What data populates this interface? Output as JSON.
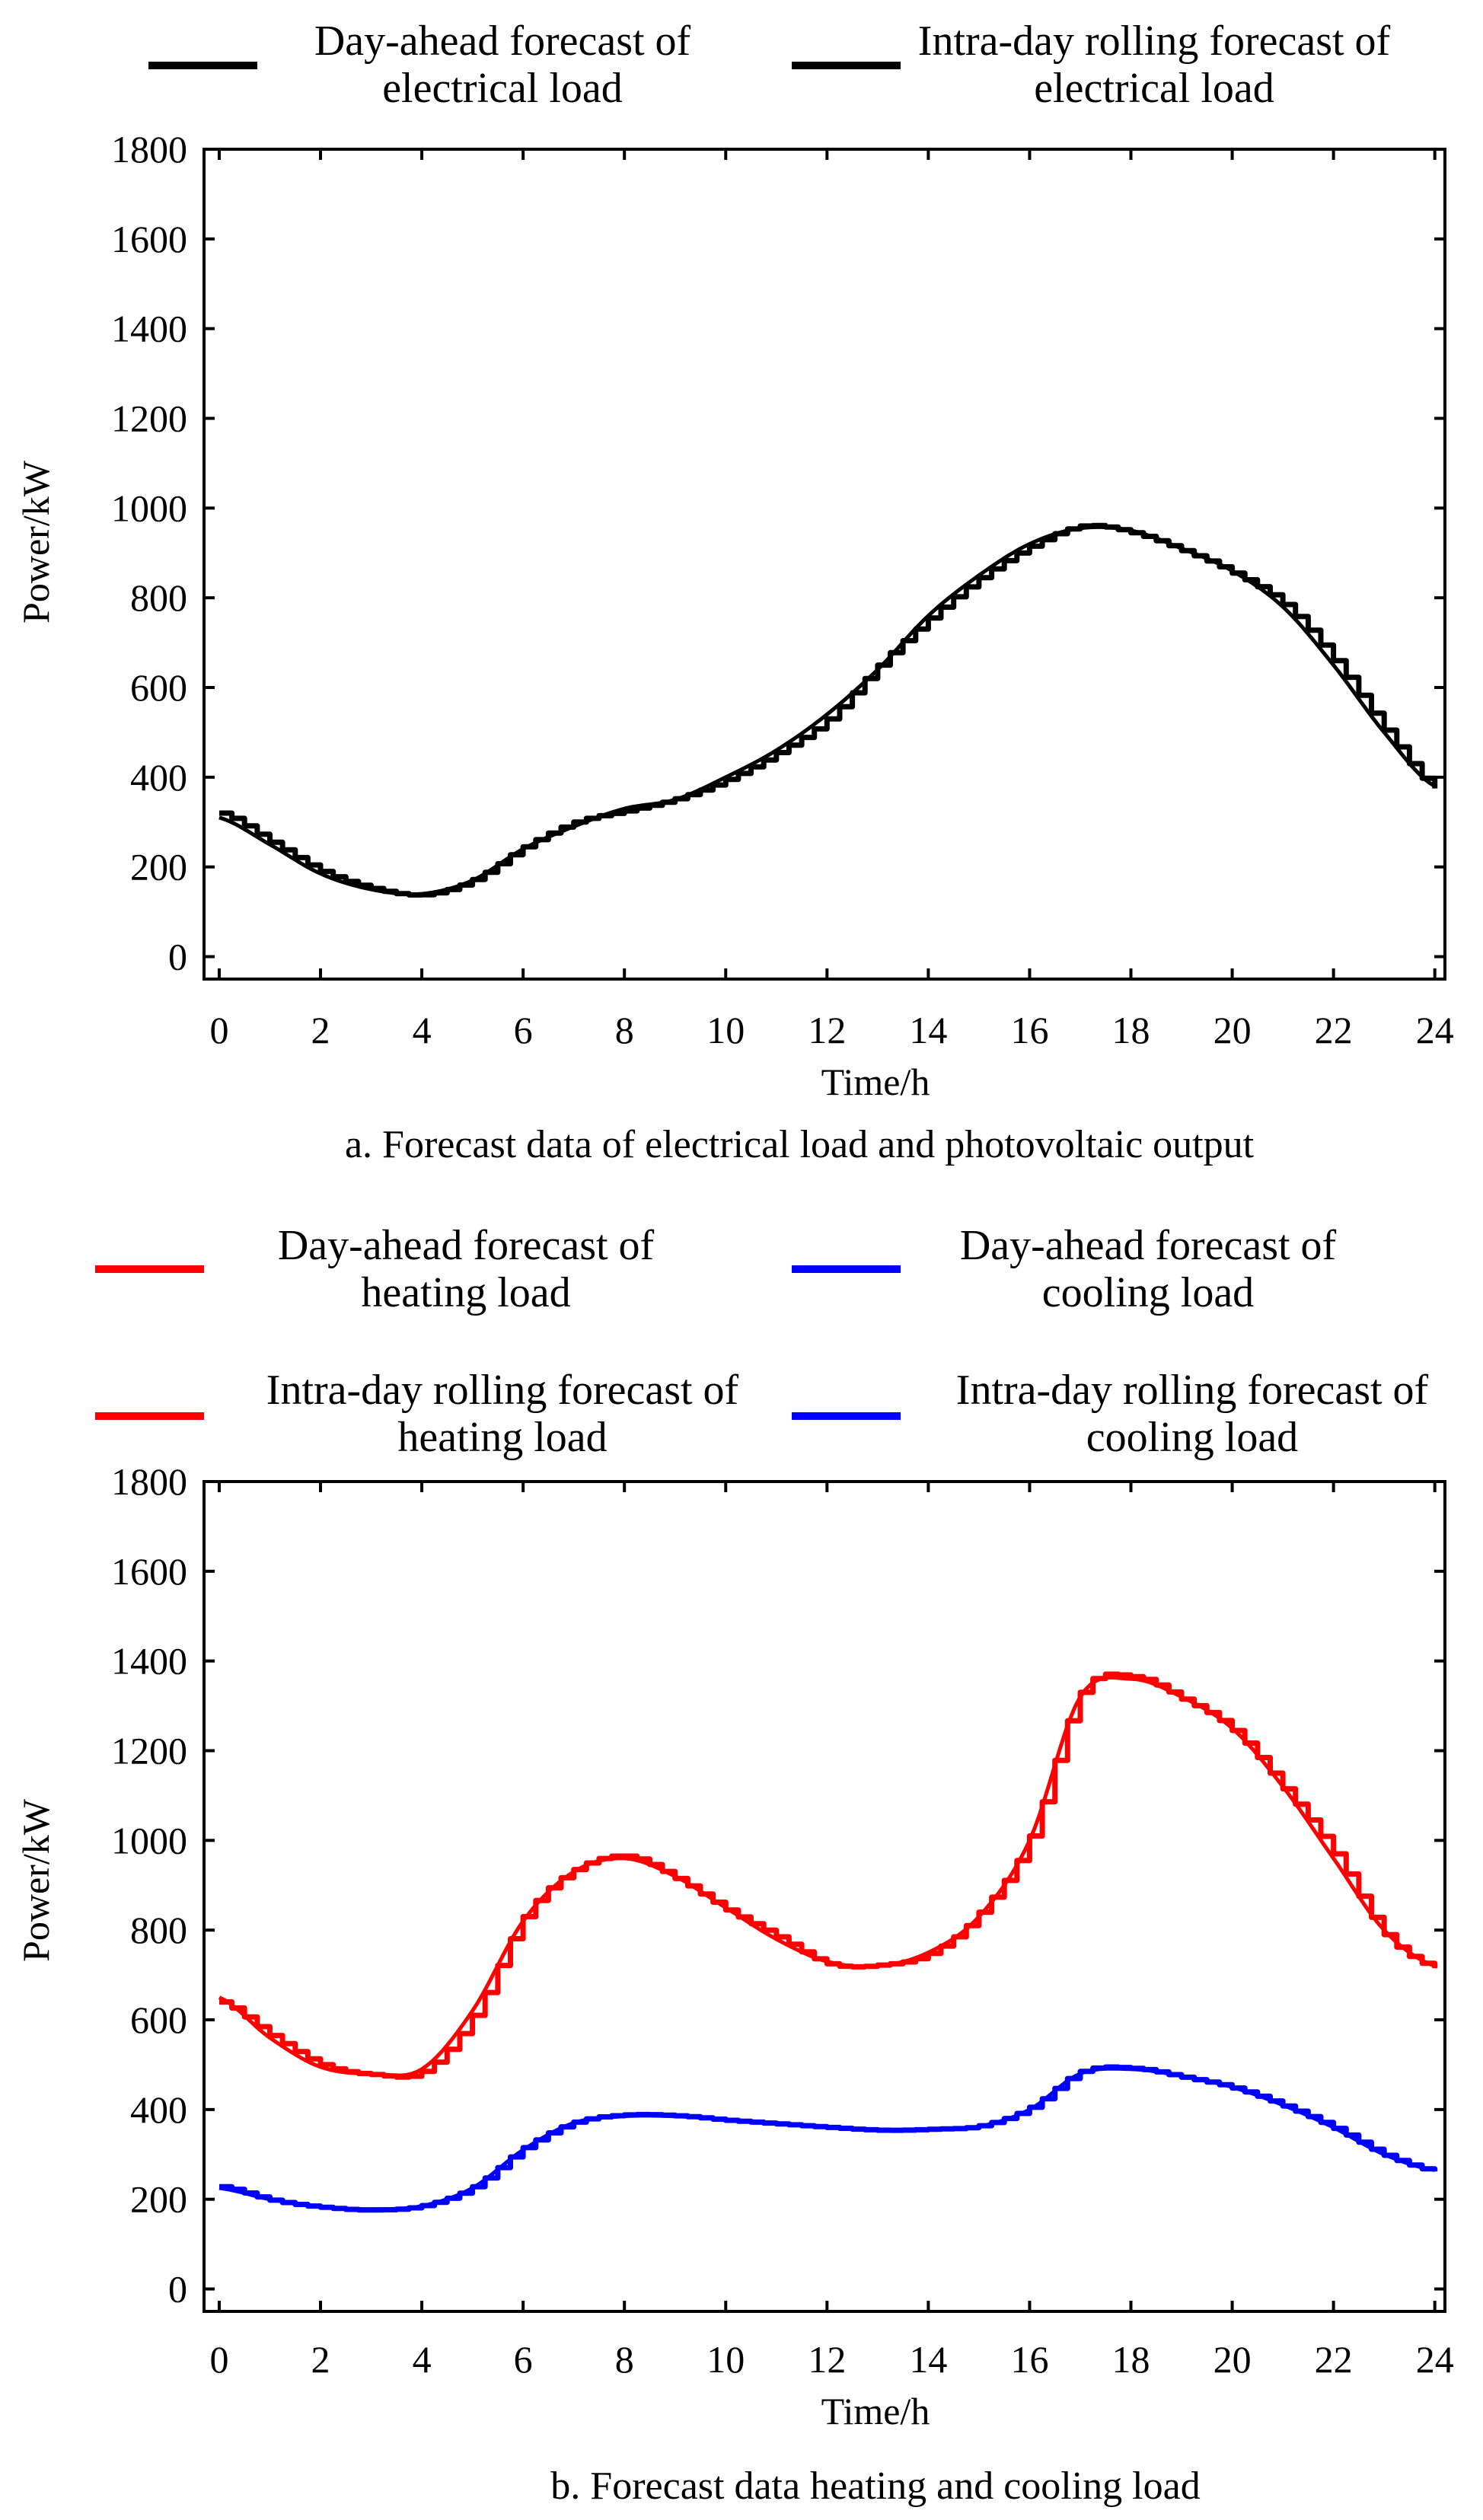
{
  "chart_data": [
    {
      "type": "line",
      "caption": "a. Forecast data of electrical load and photovoltaic output",
      "xlabel": "Time/h",
      "ylabel": "Power/kW",
      "xlim": [
        -0.3,
        24.2
      ],
      "ylim": [
        -50,
        1800
      ],
      "xticks": [
        0,
        2,
        4,
        6,
        8,
        10,
        12,
        14,
        16,
        18,
        20,
        22,
        24
      ],
      "xtick_labels": [
        "0",
        "2",
        "4",
        "6",
        "8",
        "10",
        "12",
        "14",
        "16",
        "18",
        "20",
        "22",
        "24"
      ],
      "yticks": [
        0,
        200,
        400,
        600,
        800,
        1000,
        1200,
        1400,
        1600,
        1800
      ],
      "ytick_labels": [
        "0",
        "200",
        "400",
        "600",
        "800",
        "1000",
        "1200",
        "1400",
        "1600",
        "1800"
      ],
      "legend": [
        {
          "label_lines": [
            "Day-ahead forecast of",
            "electrical load"
          ],
          "color": "#000000"
        },
        {
          "label_lines": [
            "Intra-day rolling forecast of",
            "electrical load"
          ],
          "color": "#000000"
        }
      ],
      "series": [
        {
          "name": "Day-ahead forecast of electrical load",
          "color": "#000000",
          "x": [
            0,
            1,
            2,
            3,
            4,
            5,
            6,
            7,
            8,
            9,
            10,
            11,
            12,
            13,
            14,
            15,
            16,
            17,
            18,
            19,
            20,
            21,
            22,
            23,
            24
          ],
          "y": [
            310,
            250,
            185,
            150,
            140,
            170,
            240,
            290,
            330,
            350,
            400,
            460,
            540,
            640,
            760,
            850,
            920,
            955,
            950,
            910,
            860,
            780,
            650,
            500,
            380
          ]
        },
        {
          "name": "Intra-day rolling forecast of electrical load",
          "color": "#000000",
          "x": [
            0,
            1,
            2,
            3,
            4,
            5,
            6,
            7,
            8,
            9,
            10,
            11,
            12,
            13,
            14,
            15,
            16,
            17,
            18,
            19,
            20,
            21,
            22,
            23,
            24
          ],
          "y": [
            320,
            255,
            190,
            152,
            138,
            172,
            245,
            300,
            325,
            352,
            395,
            455,
            530,
            650,
            755,
            845,
            915,
            960,
            945,
            905,
            855,
            785,
            660,
            505,
            375
          ]
        }
      ]
    },
    {
      "type": "line",
      "caption": "b. Forecast data heating and cooling load",
      "xlabel": "Time/h",
      "ylabel": "Power/kW",
      "xlim": [
        -0.3,
        24.2
      ],
      "ylim": [
        -50,
        1800
      ],
      "xticks": [
        0,
        2,
        4,
        6,
        8,
        10,
        12,
        14,
        16,
        18,
        20,
        22,
        24
      ],
      "xtick_labels": [
        "0",
        "2",
        "4",
        "6",
        "8",
        "10",
        "12",
        "14",
        "16",
        "18",
        "20",
        "22",
        "24"
      ],
      "yticks": [
        0,
        200,
        400,
        600,
        800,
        1000,
        1200,
        1400,
        1600,
        1800
      ],
      "ytick_labels": [
        "0",
        "200",
        "400",
        "600",
        "800",
        "1000",
        "1200",
        "1400",
        "1600",
        "1800"
      ],
      "legend": [
        {
          "label_lines": [
            "Day-ahead forecast of",
            "heating load"
          ],
          "color": "#ff0000"
        },
        {
          "label_lines": [
            "Day-ahead forecast of",
            "cooling load"
          ],
          "color": "#0000ff"
        },
        {
          "label_lines": [
            "Intra-day rolling forecast of",
            "heating load"
          ],
          "color": "#ff0000"
        },
        {
          "label_lines": [
            "Intra-day rolling forecast of",
            "cooling load"
          ],
          "color": "#0000ff"
        }
      ],
      "series": [
        {
          "name": "Day-ahead forecast of heating load",
          "color": "#ff0000",
          "x": [
            0,
            1,
            2,
            3,
            4,
            5,
            6,
            7,
            8,
            9,
            10,
            11,
            12,
            13,
            14,
            15,
            16,
            17,
            18,
            19,
            20,
            21,
            22,
            23,
            24
          ],
          "y": [
            650,
            560,
            495,
            480,
            490,
            620,
            820,
            930,
            960,
            920,
            850,
            780,
            730,
            720,
            750,
            830,
            1000,
            1320,
            1360,
            1320,
            1250,
            1120,
            960,
            800,
            720
          ]
        },
        {
          "name": "Day-ahead forecast of cooling load",
          "color": "#0000ff",
          "x": [
            0,
            1,
            2,
            3,
            4,
            5,
            6,
            7,
            8,
            9,
            10,
            11,
            12,
            13,
            14,
            15,
            16,
            17,
            18,
            19,
            20,
            21,
            22,
            23,
            24
          ],
          "y": [
            225,
            200,
            183,
            178,
            185,
            225,
            310,
            370,
            385,
            385,
            378,
            370,
            362,
            355,
            355,
            362,
            400,
            480,
            490,
            475,
            450,
            410,
            360,
            300,
            265
          ]
        },
        {
          "name": "Intra-day rolling forecast of heating load",
          "color": "#ff0000",
          "x": [
            0,
            1,
            2,
            3,
            4,
            5,
            6,
            7,
            8,
            9,
            10,
            11,
            12,
            13,
            14,
            15,
            16,
            17,
            18,
            19,
            20,
            21,
            22,
            23,
            24
          ],
          "y": [
            640,
            565,
            500,
            478,
            485,
            610,
            830,
            935,
            965,
            915,
            845,
            785,
            725,
            722,
            748,
            840,
            1010,
            1330,
            1365,
            1315,
            1245,
            1115,
            970,
            790,
            715
          ]
        },
        {
          "name": "Intra-day rolling forecast of cooling load",
          "color": "#0000ff",
          "x": [
            0,
            1,
            2,
            3,
            4,
            5,
            6,
            7,
            8,
            9,
            10,
            11,
            12,
            13,
            14,
            15,
            16,
            17,
            18,
            19,
            20,
            21,
            22,
            23,
            24
          ],
          "y": [
            228,
            198,
            182,
            176,
            186,
            228,
            315,
            372,
            388,
            386,
            376,
            368,
            360,
            354,
            356,
            364,
            405,
            485,
            492,
            472,
            448,
            408,
            358,
            298,
            262
          ]
        }
      ]
    }
  ]
}
